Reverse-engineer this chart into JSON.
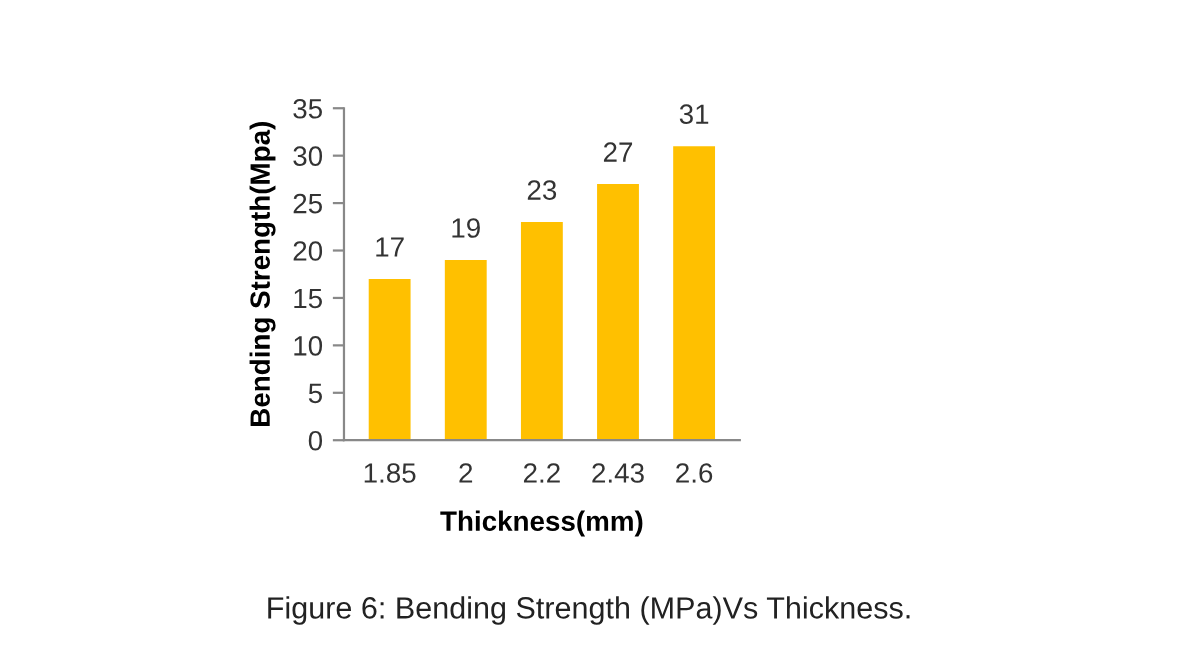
{
  "chart_data": {
    "type": "bar",
    "categories": [
      "1.85",
      "2",
      "2.2",
      "2.43",
      "2.6"
    ],
    "values": [
      17,
      19,
      23,
      27,
      31
    ],
    "color": "#ffc000",
    "xlabel": "Thickness(mm)",
    "ylabel": "Bending Strength(Mpa)",
    "ylim": [
      0,
      35
    ],
    "yticks": [
      0,
      5,
      10,
      15,
      20,
      25,
      30,
      35
    ],
    "data_labels": true,
    "grid": false,
    "legend": false,
    "annotations": [
      "Figure 6: Bending Strength (MPa)Vs Thickness."
    ]
  }
}
